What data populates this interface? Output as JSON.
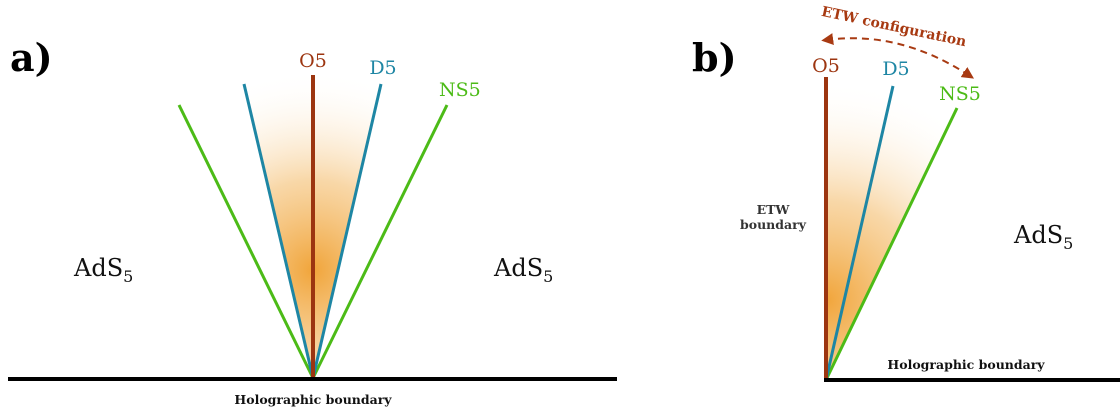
{
  "colors": {
    "o5": "#9c3510",
    "d5": "#1e86a4",
    "ns5": "#4cbb17",
    "boundary": "#000000",
    "glow": "#f0a030",
    "etw_arrow": "#a83a12"
  },
  "panel_a": {
    "label": "a)",
    "o5": "O5",
    "d5": "D5",
    "ns5": "NS5",
    "ads_left": "AdS",
    "ads_left_sub": "5",
    "ads_right": "AdS",
    "ads_right_sub": "5",
    "boundary_label": "Holographic boundary"
  },
  "panel_b": {
    "label": "b)",
    "o5": "O5",
    "d5": "D5",
    "ns5": "NS5",
    "ads": "AdS",
    "ads_sub": "5",
    "etw_boundary_line1": "ETW",
    "etw_boundary_line2": "boundary",
    "etw_configuration": "ETW configuration",
    "boundary_label": "Holographic boundary"
  }
}
